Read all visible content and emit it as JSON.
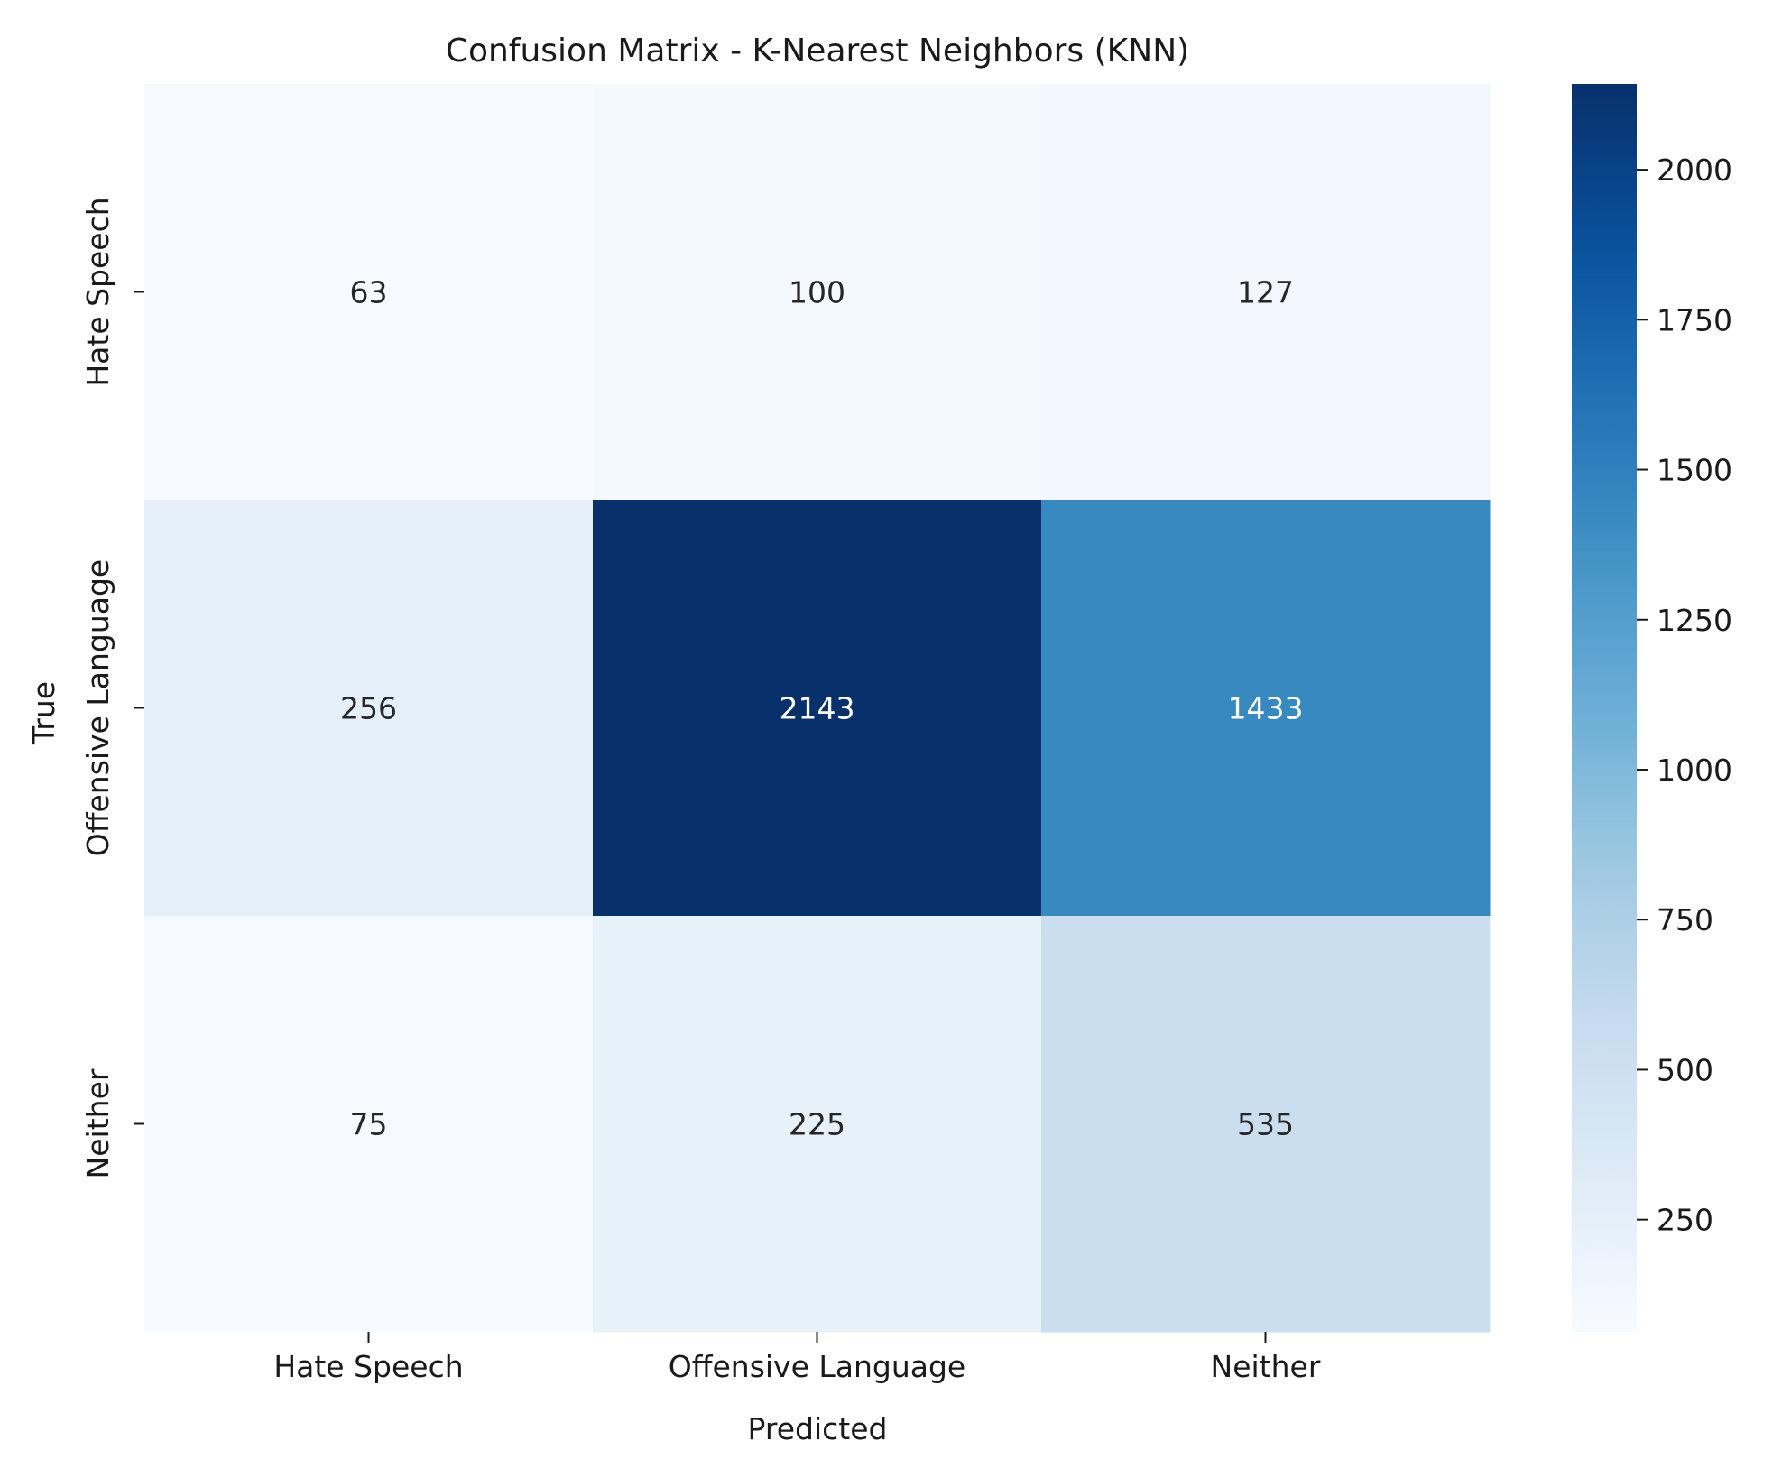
{
  "chart_data": {
    "type": "heatmap",
    "title": "Confusion Matrix - K-Nearest Neighbors (KNN)",
    "xlabel": "Predicted",
    "ylabel": "True",
    "x_categories": [
      "Hate Speech",
      "Offensive Language",
      "Neither"
    ],
    "y_categories": [
      "Hate Speech",
      "Offensive Language",
      "Neither"
    ],
    "values": [
      [
        63,
        100,
        127
      ],
      [
        256,
        2143,
        1433
      ],
      [
        75,
        225,
        535
      ]
    ],
    "colormap": "Blues",
    "colorbar": {
      "range": [
        63,
        2143
      ],
      "ticks": [
        250,
        500,
        750,
        1000,
        1250,
        1500,
        1750,
        2000
      ]
    },
    "annotated": true,
    "grid": false
  }
}
